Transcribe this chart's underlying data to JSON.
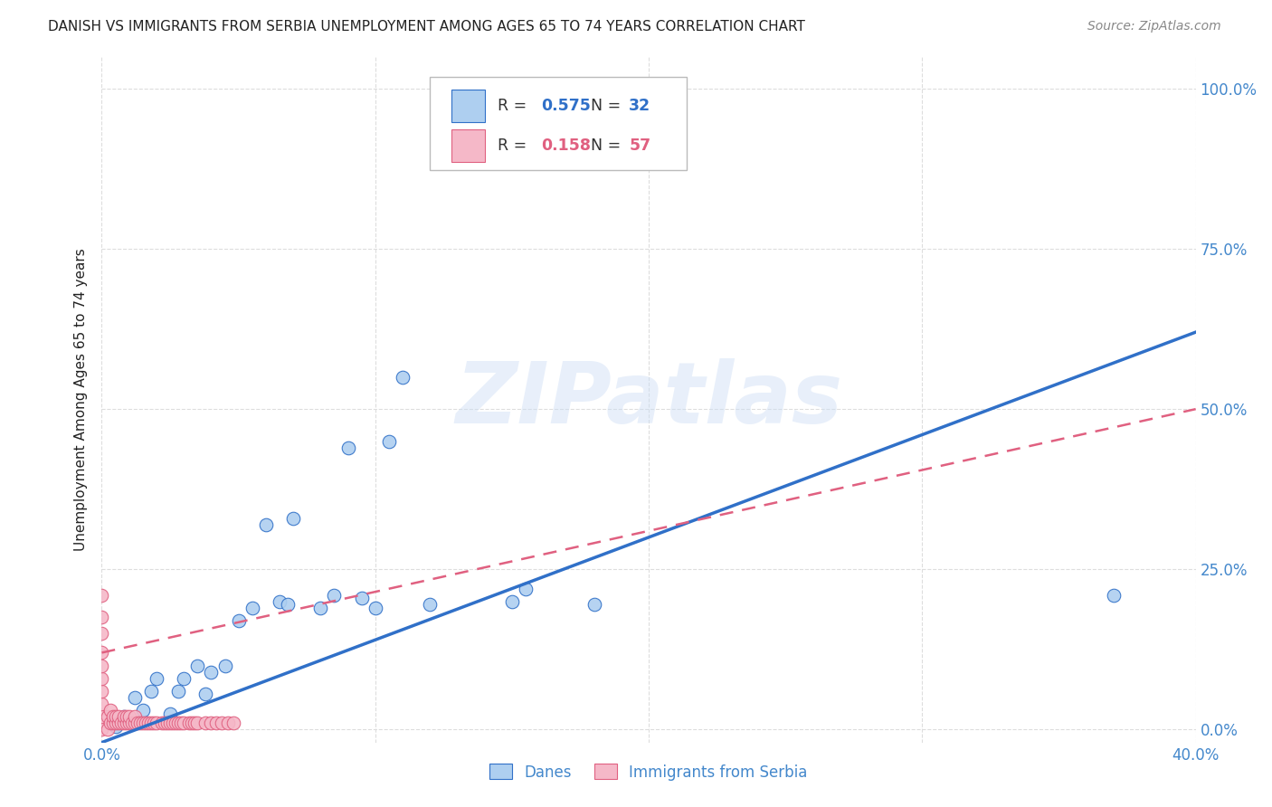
{
  "title": "DANISH VS IMMIGRANTS FROM SERBIA UNEMPLOYMENT AMONG AGES 65 TO 74 YEARS CORRELATION CHART",
  "source": "Source: ZipAtlas.com",
  "ylabel": "Unemployment Among Ages 65 to 74 years",
  "xlim": [
    0.0,
    0.4
  ],
  "ylim": [
    -0.02,
    1.05
  ],
  "xticks": [
    0.0,
    0.1,
    0.2,
    0.3,
    0.4
  ],
  "xtick_labels": [
    "0.0%",
    "",
    "",
    "",
    "40.0%"
  ],
  "ytick_labels": [
    "0.0%",
    "25.0%",
    "50.0%",
    "75.0%",
    "100.0%"
  ],
  "yticks": [
    0.0,
    0.25,
    0.5,
    0.75,
    1.0
  ],
  "danes_R": "0.575",
  "danes_N": "32",
  "serbia_R": "0.158",
  "serbia_N": "57",
  "danes_color": "#aecff0",
  "danes_line_color": "#3070c8",
  "serbia_color": "#f5b8c8",
  "serbia_line_color": "#e06080",
  "danes_x": [
    0.005,
    0.008,
    0.01,
    0.012,
    0.015,
    0.018,
    0.02,
    0.025,
    0.028,
    0.03,
    0.035,
    0.038,
    0.04,
    0.045,
    0.05,
    0.055,
    0.06,
    0.065,
    0.068,
    0.07,
    0.08,
    0.085,
    0.09,
    0.095,
    0.1,
    0.105,
    0.11,
    0.12,
    0.15,
    0.155,
    0.37,
    0.18
  ],
  "danes_y": [
    0.005,
    0.02,
    0.01,
    0.05,
    0.03,
    0.06,
    0.08,
    0.025,
    0.06,
    0.08,
    0.1,
    0.055,
    0.09,
    0.1,
    0.17,
    0.19,
    0.32,
    0.2,
    0.195,
    0.33,
    0.19,
    0.21,
    0.44,
    0.205,
    0.19,
    0.45,
    0.55,
    0.195,
    0.2,
    0.22,
    0.21,
    0.195
  ],
  "serbia_x": [
    0.0,
    0.0,
    0.0,
    0.0,
    0.0,
    0.0,
    0.0,
    0.0,
    0.0,
    0.0,
    0.002,
    0.002,
    0.003,
    0.003,
    0.004,
    0.004,
    0.005,
    0.005,
    0.006,
    0.006,
    0.007,
    0.008,
    0.008,
    0.009,
    0.009,
    0.01,
    0.01,
    0.011,
    0.012,
    0.012,
    0.013,
    0.014,
    0.015,
    0.016,
    0.017,
    0.018,
    0.019,
    0.02,
    0.022,
    0.023,
    0.024,
    0.025,
    0.026,
    0.027,
    0.028,
    0.029,
    0.03,
    0.032,
    0.033,
    0.034,
    0.035,
    0.038,
    0.04,
    0.042,
    0.044,
    0.046,
    0.048
  ],
  "serbia_y": [
    0.0,
    0.02,
    0.04,
    0.06,
    0.08,
    0.1,
    0.12,
    0.15,
    0.175,
    0.21,
    0.0,
    0.02,
    0.01,
    0.03,
    0.01,
    0.02,
    0.01,
    0.02,
    0.01,
    0.02,
    0.01,
    0.01,
    0.02,
    0.01,
    0.02,
    0.01,
    0.02,
    0.01,
    0.01,
    0.02,
    0.01,
    0.01,
    0.01,
    0.01,
    0.01,
    0.01,
    0.01,
    0.01,
    0.01,
    0.01,
    0.01,
    0.01,
    0.01,
    0.01,
    0.01,
    0.01,
    0.01,
    0.01,
    0.01,
    0.01,
    0.01,
    0.01,
    0.01,
    0.01,
    0.01,
    0.01,
    0.01
  ],
  "danes_line_x": [
    0.0,
    0.4
  ],
  "danes_line_y": [
    -0.02,
    0.62
  ],
  "serbia_line_x": [
    0.0,
    0.4
  ],
  "serbia_line_y": [
    0.12,
    0.5
  ],
  "background_color": "#ffffff",
  "grid_color": "#dddddd",
  "title_color": "#222222",
  "axis_color": "#4488cc",
  "watermark": "ZIPatlas"
}
